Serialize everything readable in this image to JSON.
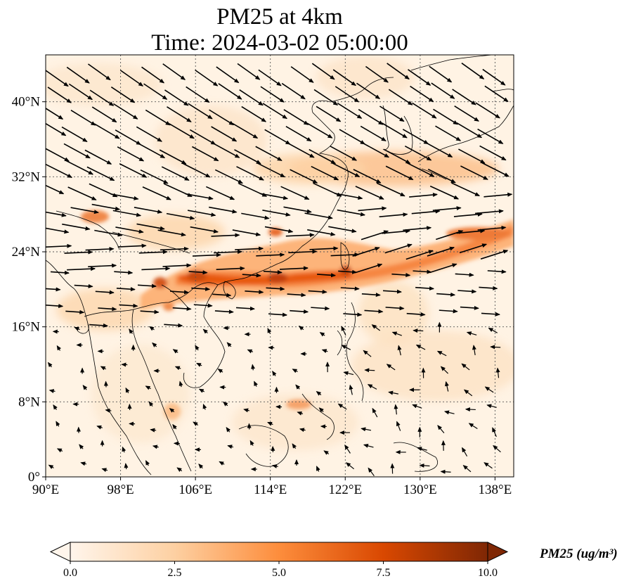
{
  "chart_data": {
    "type": "heatmap",
    "title_line1": "PM25 at 4km",
    "title_line2": "Time: 2024-03-02 05:00:00",
    "lon_range": [
      90,
      140
    ],
    "lat_range": [
      0,
      45
    ],
    "x_ticks": [
      {
        "value": 90,
        "label": "90°E"
      },
      {
        "value": 98,
        "label": "98°E"
      },
      {
        "value": 106,
        "label": "106°E"
      },
      {
        "value": 114,
        "label": "114°E"
      },
      {
        "value": 122,
        "label": "122°E"
      },
      {
        "value": 130,
        "label": "130°E"
      },
      {
        "value": 138,
        "label": "138°E"
      }
    ],
    "y_ticks": [
      {
        "value": 0,
        "label": "0°"
      },
      {
        "value": 8,
        "label": "8°N"
      },
      {
        "value": 16,
        "label": "16°N"
      },
      {
        "value": 24,
        "label": "24°N"
      },
      {
        "value": 32,
        "label": "32°N"
      },
      {
        "value": 40,
        "label": "40°N"
      }
    ],
    "gridlines": true,
    "colormap": [
      "#fff5eb",
      "#fdd0a2",
      "#fd8d3c",
      "#d94801",
      "#7f2704"
    ],
    "colorbar": {
      "min": 0.0,
      "max": 10.0,
      "ticks": [
        "0.0",
        "2.5",
        "5.0",
        "7.5",
        "10.0"
      ],
      "extend": "both",
      "label": "PM25 (ug/m³)"
    },
    "plume_band": [
      {
        "lon": 101,
        "lat": 20.5,
        "value": 6.5
      },
      {
        "lon": 104,
        "lat": 21.5,
        "value": 7.5
      },
      {
        "lon": 108,
        "lat": 21.0,
        "value": 8.0
      },
      {
        "lon": 112,
        "lat": 21.5,
        "value": 7.5
      },
      {
        "lon": 116,
        "lat": 22.0,
        "value": 8.5
      },
      {
        "lon": 120,
        "lat": 21.5,
        "value": 6.5
      },
      {
        "lon": 122,
        "lat": 22.0,
        "value": 7.0
      },
      {
        "lon": 127,
        "lat": 23.0,
        "value": 5.5
      },
      {
        "lon": 133,
        "lat": 25.5,
        "value": 5.0
      },
      {
        "lon": 139,
        "lat": 27.0,
        "value": 5.5
      }
    ],
    "wind_vectors_description": "Quiver field: strong westerly/northwesterly flow north of ~18°N, weak variable winds in the south",
    "colors": {
      "coast": "#000000",
      "grid": "#555555",
      "arrow": "#000000"
    }
  }
}
